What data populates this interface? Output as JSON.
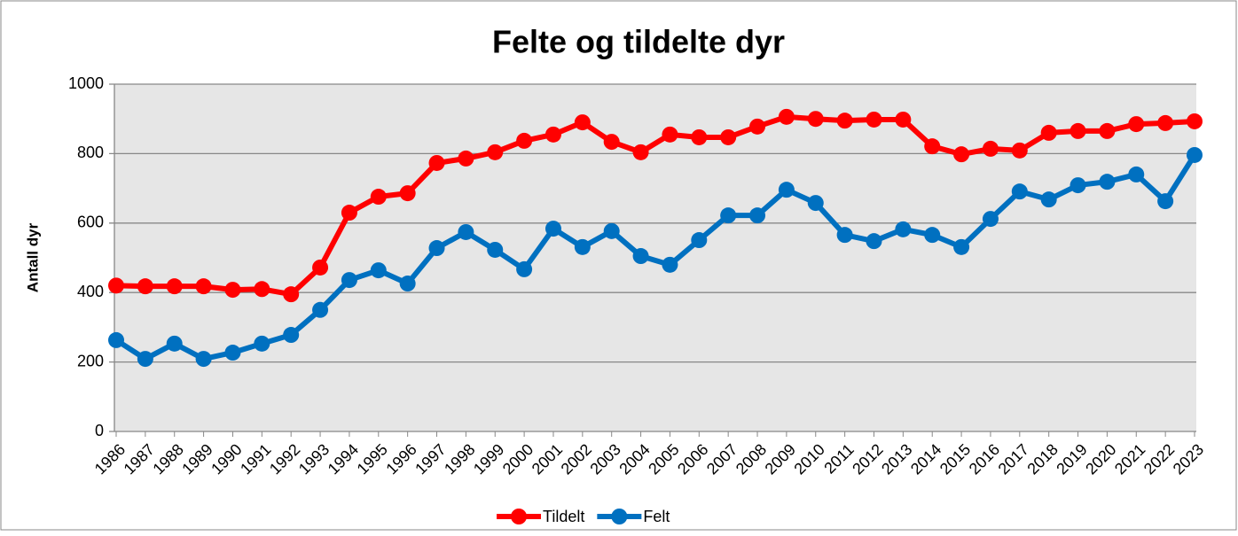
{
  "chart_data": {
    "type": "line",
    "title": "Felte og tildelte dyr",
    "y_label": "Antall dyr",
    "categories": [
      "1986",
      "1987",
      "1988",
      "1989",
      "1990",
      "1991",
      "1992",
      "1993",
      "1994",
      "1995",
      "1996",
      "1997",
      "1998",
      "1999",
      "2000",
      "2001",
      "2002",
      "2003",
      "2004",
      "2005",
      "2006",
      "2007",
      "2008",
      "2009",
      "2010",
      "2011",
      "2012",
      "2013",
      "2014",
      "2015",
      "2016",
      "2017",
      "2018",
      "2019",
      "2020",
      "2021",
      "2022",
      "2023"
    ],
    "series": [
      {
        "name": "Tildelt",
        "color": "#ff0000",
        "values": [
          420,
          418,
          418,
          418,
          408,
          410,
          395,
          472,
          630,
          676,
          686,
          773,
          786,
          804,
          837,
          855,
          890,
          834,
          804,
          855,
          847,
          847,
          878,
          906,
          900,
          895,
          898,
          898,
          821,
          798,
          814,
          809,
          860,
          865,
          865,
          885,
          888,
          893
        ]
      },
      {
        "name": "Felt",
        "color": "#0070c0",
        "values": [
          263,
          209,
          253,
          209,
          227,
          253,
          278,
          350,
          436,
          464,
          426,
          528,
          574,
          523,
          467,
          584,
          531,
          577,
          505,
          480,
          551,
          622,
          622,
          696,
          658,
          566,
          548,
          582,
          566,
          531,
          612,
          691,
          668,
          709,
          719,
          740,
          663,
          796
        ]
      }
    ],
    "ylim": [
      0,
      1000
    ],
    "yticks": [
      0,
      200,
      400,
      600,
      800,
      1000
    ],
    "grid": true,
    "legend": "bottom"
  }
}
